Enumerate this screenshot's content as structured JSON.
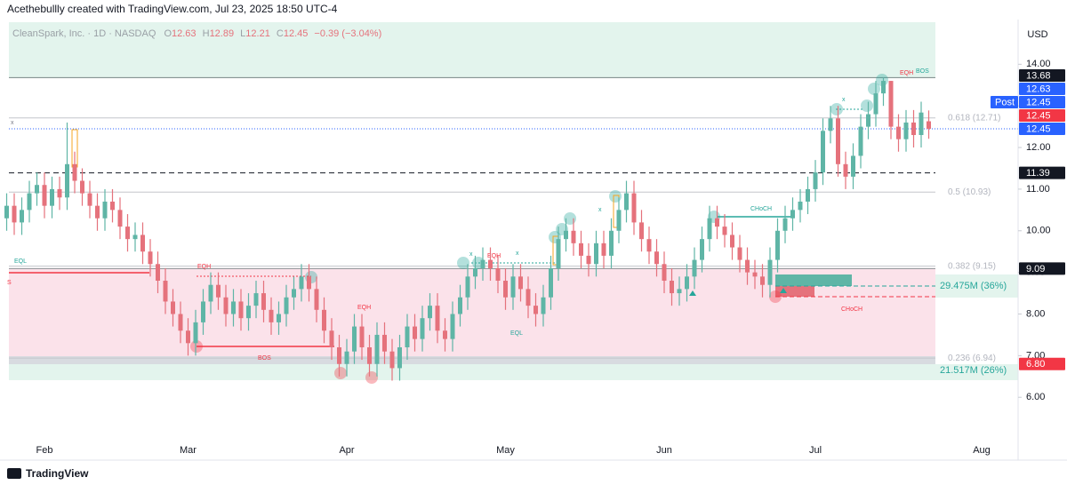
{
  "header": "Acethebullly created with TradingView.com, Jul 23, 2025 18:50 UTC-4",
  "chart_data": {
    "type": "candlestick",
    "symbol": "CleanSpark, Inc. · 1D · NASDAQ",
    "ohlc_keys": [
      "O",
      "H",
      "L",
      "C"
    ],
    "change": "−0.39 (−3.04%)",
    "currency": "USD",
    "brand": "TradingView",
    "up_color": "#5fb5a6",
    "down_color": "#e5727c",
    "categories": [
      null,
      null,
      null,
      null,
      null,
      "Feb",
      null,
      null,
      null,
      null,
      null,
      null,
      null,
      null,
      null,
      null,
      null,
      null,
      null,
      null,
      null,
      null,
      null,
      null,
      "Mar",
      null,
      null,
      null,
      null,
      null,
      null,
      null,
      null,
      null,
      null,
      null,
      null,
      null,
      null,
      null,
      null,
      null,
      null,
      null,
      null,
      "Apr",
      null,
      null,
      null,
      null,
      null,
      null,
      null,
      null,
      null,
      null,
      null,
      null,
      null,
      null,
      null,
      null,
      null,
      null,
      null,
      null,
      "May",
      null,
      null,
      null,
      null,
      null,
      null,
      null,
      null,
      null,
      null,
      null,
      null,
      null,
      null,
      null,
      null,
      null,
      null,
      null,
      null,
      "Jun",
      null,
      null,
      null,
      null,
      null,
      null,
      null,
      null,
      null,
      null,
      null,
      null,
      null,
      null,
      null,
      null,
      null,
      null,
      null,
      "Jul",
      null,
      null,
      null,
      null,
      null,
      null,
      null,
      null,
      null,
      null,
      null,
      null,
      null,
      null,
      null,
      null,
      null,
      null,
      null,
      null,
      null,
      "Aug"
    ],
    "ohlc": [
      [
        10.3,
        10.9,
        10.0,
        10.6
      ],
      [
        10.6,
        10.9,
        9.9,
        10.2
      ],
      [
        10.2,
        10.8,
        9.9,
        10.5
      ],
      [
        10.5,
        11.2,
        10.2,
        10.9
      ],
      [
        10.9,
        11.4,
        10.6,
        11.1
      ],
      [
        11.1,
        11.4,
        10.3,
        10.6
      ],
      [
        10.6,
        11.3,
        10.3,
        11.0
      ],
      [
        11.0,
        11.3,
        10.5,
        10.8
      ],
      [
        10.8,
        12.6,
        10.5,
        11.6
      ],
      [
        11.6,
        11.9,
        10.9,
        11.2
      ],
      [
        11.2,
        11.5,
        10.6,
        10.9
      ],
      [
        10.9,
        11.2,
        10.3,
        10.6
      ],
      [
        10.6,
        10.9,
        10.0,
        10.3
      ],
      [
        10.3,
        11.0,
        10.0,
        10.7
      ],
      [
        10.7,
        11.0,
        10.2,
        10.5
      ],
      [
        10.5,
        10.8,
        9.8,
        10.1
      ],
      [
        10.1,
        10.4,
        9.5,
        9.8
      ],
      [
        9.8,
        10.2,
        9.5,
        9.9
      ],
      [
        9.9,
        10.2,
        9.2,
        9.5
      ],
      [
        9.5,
        9.8,
        8.9,
        9.2
      ],
      [
        9.2,
        9.5,
        8.5,
        8.8
      ],
      [
        8.8,
        9.1,
        8.0,
        8.3
      ],
      [
        8.3,
        8.6,
        7.7,
        8.0
      ],
      [
        8.0,
        8.3,
        7.3,
        7.6
      ],
      [
        7.6,
        7.9,
        7.0,
        7.3
      ],
      [
        7.3,
        8.1,
        7.0,
        7.8
      ],
      [
        7.8,
        8.6,
        7.5,
        8.3
      ],
      [
        8.3,
        9.0,
        8.0,
        8.7
      ],
      [
        8.7,
        9.0,
        8.1,
        8.4
      ],
      [
        8.4,
        8.7,
        7.7,
        8.0
      ],
      [
        8.0,
        8.6,
        7.7,
        8.3
      ],
      [
        8.3,
        8.6,
        7.6,
        7.9
      ],
      [
        7.9,
        8.5,
        7.6,
        8.2
      ],
      [
        8.2,
        8.8,
        7.9,
        8.5
      ],
      [
        8.5,
        8.8,
        7.8,
        8.1
      ],
      [
        8.1,
        8.4,
        7.5,
        7.8
      ],
      [
        7.8,
        8.3,
        7.5,
        8.0
      ],
      [
        8.0,
        8.7,
        7.7,
        8.4
      ],
      [
        8.4,
        8.9,
        8.1,
        8.6
      ],
      [
        8.6,
        9.2,
        8.3,
        8.9
      ],
      [
        8.9,
        9.2,
        8.3,
        8.6
      ],
      [
        8.6,
        8.9,
        7.8,
        8.1
      ],
      [
        8.1,
        8.4,
        7.3,
        7.6
      ],
      [
        7.6,
        7.9,
        6.9,
        7.2
      ],
      [
        7.2,
        7.5,
        6.5,
        6.8
      ],
      [
        6.8,
        7.4,
        6.5,
        7.1
      ],
      [
        7.1,
        8.0,
        6.8,
        7.7
      ],
      [
        7.7,
        8.0,
        6.9,
        7.2
      ],
      [
        7.2,
        7.5,
        6.5,
        6.8
      ],
      [
        6.8,
        7.8,
        6.5,
        7.5
      ],
      [
        7.5,
        7.8,
        6.8,
        7.1
      ],
      [
        7.1,
        7.4,
        6.4,
        6.7
      ],
      [
        6.7,
        7.5,
        6.4,
        7.2
      ],
      [
        7.2,
        8.0,
        6.9,
        7.7
      ],
      [
        7.7,
        8.0,
        7.1,
        7.4
      ],
      [
        7.4,
        8.2,
        7.1,
        7.9
      ],
      [
        7.9,
        8.5,
        7.6,
        8.2
      ],
      [
        8.2,
        8.5,
        7.3,
        7.6
      ],
      [
        7.6,
        7.9,
        7.1,
        7.4
      ],
      [
        7.4,
        8.3,
        7.1,
        8.0
      ],
      [
        8.0,
        8.7,
        7.7,
        8.4
      ],
      [
        8.4,
        9.2,
        8.1,
        8.9
      ],
      [
        8.9,
        9.4,
        8.6,
        9.1
      ],
      [
        9.1,
        9.6,
        8.8,
        9.3
      ],
      [
        9.3,
        9.6,
        8.8,
        9.1
      ],
      [
        9.1,
        9.4,
        8.5,
        8.8
      ],
      [
        8.8,
        9.1,
        8.1,
        8.4
      ],
      [
        8.4,
        9.2,
        8.1,
        8.9
      ],
      [
        8.9,
        9.2,
        8.3,
        8.6
      ],
      [
        8.6,
        8.9,
        7.9,
        8.2
      ],
      [
        8.2,
        8.5,
        7.7,
        8.0
      ],
      [
        8.0,
        8.7,
        7.7,
        8.4
      ],
      [
        8.4,
        9.4,
        8.1,
        9.1
      ],
      [
        9.1,
        10.1,
        8.8,
        9.8
      ],
      [
        9.8,
        10.3,
        9.5,
        10.0
      ],
      [
        10.0,
        10.3,
        9.4,
        9.7
      ],
      [
        9.7,
        10.0,
        9.1,
        9.4
      ],
      [
        9.4,
        9.7,
        8.9,
        9.2
      ],
      [
        9.2,
        10.0,
        8.9,
        9.7
      ],
      [
        9.7,
        10.0,
        9.1,
        9.4
      ],
      [
        9.4,
        10.3,
        9.1,
        10.0
      ],
      [
        10.0,
        10.8,
        9.7,
        10.5
      ],
      [
        10.5,
        11.2,
        10.2,
        10.9
      ],
      [
        10.9,
        11.2,
        9.9,
        10.2
      ],
      [
        10.2,
        10.5,
        9.5,
        9.8
      ],
      [
        9.8,
        10.1,
        9.2,
        9.5
      ],
      [
        9.5,
        9.8,
        8.9,
        9.2
      ],
      [
        9.2,
        9.5,
        8.5,
        8.8
      ],
      [
        8.8,
        9.1,
        8.2,
        8.5
      ],
      [
        8.5,
        8.9,
        8.2,
        8.6
      ],
      [
        8.6,
        9.2,
        8.3,
        8.9
      ],
      [
        8.9,
        9.6,
        8.6,
        9.3
      ],
      [
        9.3,
        10.1,
        9.0,
        9.8
      ],
      [
        9.8,
        10.6,
        9.5,
        10.3
      ],
      [
        10.3,
        10.6,
        9.8,
        10.1
      ],
      [
        10.1,
        10.4,
        9.6,
        9.9
      ],
      [
        9.9,
        10.2,
        9.3,
        9.6
      ],
      [
        9.6,
        9.9,
        9.0,
        9.3
      ],
      [
        9.3,
        9.6,
        8.7,
        9.0
      ],
      [
        9.0,
        9.3,
        8.6,
        8.9
      ],
      [
        8.9,
        9.2,
        8.4,
        8.7
      ],
      [
        8.7,
        9.6,
        8.4,
        9.3
      ],
      [
        9.3,
        10.3,
        9.0,
        10.0
      ],
      [
        10.0,
        10.6,
        9.7,
        10.3
      ],
      [
        10.3,
        10.8,
        10.0,
        10.5
      ],
      [
        10.5,
        11.0,
        10.2,
        10.7
      ],
      [
        10.7,
        11.3,
        10.4,
        11.0
      ],
      [
        11.0,
        11.7,
        10.7,
        11.4
      ],
      [
        11.4,
        12.7,
        11.1,
        12.4
      ],
      [
        12.4,
        13.0,
        12.1,
        12.7
      ],
      [
        12.7,
        13.0,
        11.3,
        11.6
      ],
      [
        11.6,
        11.9,
        11.0,
        11.3
      ],
      [
        11.3,
        12.1,
        11.0,
        11.8
      ],
      [
        11.8,
        12.8,
        11.5,
        12.5
      ],
      [
        12.5,
        13.1,
        12.2,
        12.8
      ],
      [
        12.8,
        13.6,
        12.5,
        13.3
      ],
      [
        13.3,
        13.68,
        13.0,
        13.6
      ],
      [
        13.6,
        13.6,
        12.2,
        12.5
      ],
      [
        12.5,
        12.8,
        11.9,
        12.2
      ],
      [
        12.2,
        12.9,
        11.9,
        12.6
      ],
      [
        12.6,
        12.9,
        12.0,
        12.3
      ],
      [
        12.3,
        13.1,
        12.0,
        12.84
      ],
      [
        12.63,
        12.89,
        12.21,
        12.45
      ],
      null,
      null,
      null,
      null,
      null,
      null,
      null
    ],
    "ylim": [
      4.81,
      15.01
    ],
    "yticks": [
      {
        "value": 14,
        "label": "14.00"
      },
      {
        "value": 13,
        "label": "13.00"
      },
      {
        "value": 12,
        "label": "12.00"
      },
      {
        "value": 11,
        "label": "11.00"
      },
      {
        "value": 10,
        "label": "10.00"
      },
      {
        "value": 9,
        "label": "9.00"
      },
      {
        "value": 8,
        "label": "8.00"
      },
      {
        "value": 7,
        "label": "7.00"
      },
      {
        "value": 6,
        "label": "6.00"
      }
    ],
    "levels": [
      {
        "value": 12.71,
        "label": "0.618 (12.71)"
      },
      {
        "value": 10.93,
        "label": "0.5 (10.93)"
      },
      {
        "value": 9.15,
        "label": "0.382 (9.15)"
      },
      {
        "value": 6.94,
        "label": "0.236 (6.94)"
      }
    ],
    "price_tags": [
      {
        "value": 13.68,
        "color": "#131722",
        "line": "solid"
      },
      {
        "value": 12.63,
        "color": "#2962ff"
      },
      {
        "value": 12.45,
        "color": "#2962ff",
        "tag": "Post"
      },
      {
        "value": 12.45,
        "color": "#f23645"
      },
      {
        "value": 12.45,
        "color": "#2962ff",
        "line": "dotted"
      },
      {
        "value": 11.39,
        "color": "#131722",
        "line": "dashed"
      },
      {
        "value": 9.09,
        "color": "#131722",
        "line": "solid"
      },
      {
        "value": 6.8,
        "label": "6.80",
        "color": "#f23645"
      }
    ],
    "volume_labels": [
      "29.475M (36%)",
      "21.517M (26%)"
    ],
    "annotations": [
      "EQH",
      "BOS",
      "EQH",
      "BOS",
      "CHoCH",
      "CHoCH",
      "EQH",
      "EQL",
      "EQL",
      "EQH",
      "x",
      "x",
      "x",
      "x",
      "x",
      "S"
    ]
  }
}
